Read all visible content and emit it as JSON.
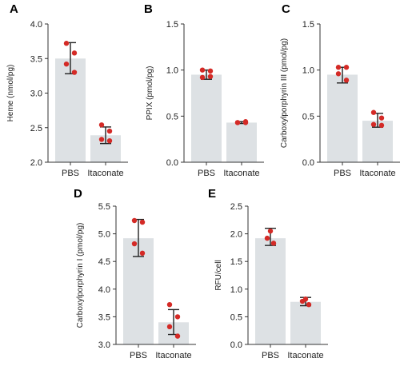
{
  "chart_data": [
    {
      "panel": "A",
      "type": "bar",
      "categories": [
        "PBS",
        "Itaconate"
      ],
      "ylabel": "Heme (nmol/pg)",
      "ylim": [
        2.0,
        4.0
      ],
      "yticks": [
        "2.0",
        "2.5",
        "3.0",
        "3.5",
        "4.0"
      ],
      "values": [
        3.5,
        2.39
      ],
      "err_low": [
        3.28,
        2.27
      ],
      "err_high": [
        3.73,
        2.51
      ],
      "points": [
        [
          3.72,
          3.58,
          3.42,
          3.3
        ],
        [
          2.54,
          2.45,
          2.33,
          2.31
        ]
      ]
    },
    {
      "panel": "B",
      "type": "bar",
      "categories": [
        "PBS",
        "Itaconate"
      ],
      "ylabel": "PPIX (pmol/pg)",
      "ylim": [
        0.0,
        1.5
      ],
      "yticks": [
        "0.0",
        "0.5",
        "1.0",
        "1.5"
      ],
      "values": [
        0.95,
        0.43
      ],
      "err_low": [
        0.9,
        0.42
      ],
      "err_high": [
        1.0,
        0.44
      ],
      "points": [
        [
          1.0,
          0.99,
          0.92,
          0.93
        ],
        [
          0.43,
          0.43,
          0.43,
          0.44
        ]
      ]
    },
    {
      "panel": "C",
      "type": "bar",
      "categories": [
        "PBS",
        "Itaconate"
      ],
      "ylabel": "Carboxylporphyrin III (pmol/pg)",
      "ylim": [
        0.0,
        1.5
      ],
      "yticks": [
        "0.0",
        "0.5",
        "1.0",
        "1.5"
      ],
      "values": [
        0.95,
        0.45
      ],
      "err_low": [
        0.86,
        0.38
      ],
      "err_high": [
        1.03,
        0.53
      ],
      "points": [
        [
          1.03,
          1.03,
          0.96,
          0.89
        ],
        [
          0.54,
          0.48,
          0.41,
          0.4
        ]
      ]
    },
    {
      "panel": "D",
      "type": "bar",
      "categories": [
        "PBS",
        "Itaconate"
      ],
      "ylabel": "Carboxylporphyrin I (pmol/pg)",
      "ylim": [
        3.0,
        5.5
      ],
      "yticks": [
        "3.0",
        "3.5",
        "4.0",
        "4.5",
        "5.0",
        "5.5"
      ],
      "values": [
        4.92,
        3.4
      ],
      "err_low": [
        4.59,
        3.18
      ],
      "err_high": [
        5.26,
        3.63
      ],
      "points": [
        [
          5.24,
          5.21,
          4.82,
          4.65
        ],
        [
          3.72,
          3.5,
          3.32,
          3.15
        ]
      ]
    },
    {
      "panel": "E",
      "type": "bar",
      "categories": [
        "PBS",
        "Itaconate"
      ],
      "ylabel": "RFU/cell",
      "ylim": [
        0.0,
        2.5
      ],
      "yticks": [
        "0.0",
        "0.5",
        "1.0",
        "1.5",
        "2.0",
        "2.5"
      ],
      "values": [
        1.92,
        0.77
      ],
      "err_low": [
        1.79,
        0.7
      ],
      "err_high": [
        2.1,
        0.85
      ],
      "points": [
        [
          2.05,
          1.92,
          1.83
        ],
        [
          0.82,
          0.78,
          0.72
        ]
      ]
    }
  ]
}
